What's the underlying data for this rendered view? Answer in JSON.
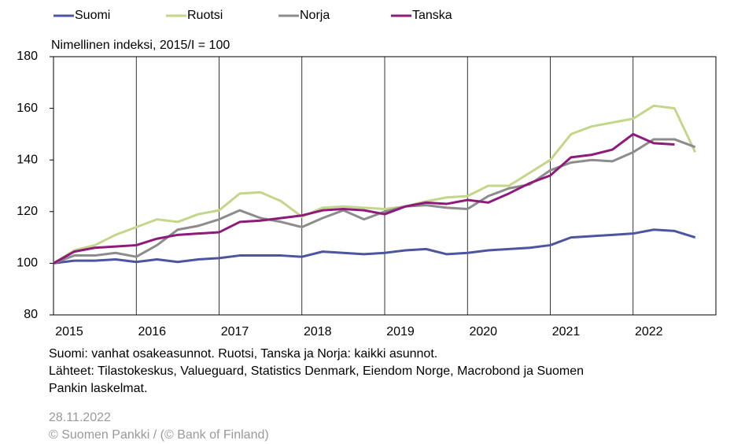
{
  "chart_data": {
    "type": "line",
    "subtitle": "Nimellinen indeksi, 2015/I = 100",
    "x": [
      2015,
      2015.25,
      2015.5,
      2015.75,
      2016,
      2016.25,
      2016.5,
      2016.75,
      2017,
      2017.25,
      2017.5,
      2017.75,
      2018,
      2018.25,
      2018.5,
      2018.75,
      2019,
      2019.25,
      2019.5,
      2019.75,
      2020,
      2020.25,
      2020.5,
      2020.75,
      2021,
      2021.25,
      2021.5,
      2021.75,
      2022,
      2022.25,
      2022.5,
      2022.75
    ],
    "series": [
      {
        "name": "Suomi",
        "color": "#4e55a0",
        "values": [
          100,
          101,
          101,
          101.5,
          100.5,
          101.5,
          100.5,
          101.5,
          102,
          103,
          103,
          103,
          102.5,
          104.5,
          104,
          103.5,
          104,
          105,
          105.5,
          103.5,
          104,
          105,
          105.5,
          106,
          107,
          110,
          110.5,
          111,
          111.5,
          113,
          112.5,
          110
        ]
      },
      {
        "name": "Ruotsi",
        "color": "#c4d68a",
        "values": [
          100,
          105,
          107,
          111,
          114,
          117,
          116,
          119,
          120.5,
          127,
          127.5,
          124,
          118,
          121.5,
          122,
          121.5,
          121,
          122,
          124,
          125.5,
          126,
          130,
          130,
          135,
          140,
          150,
          153,
          154.5,
          156,
          161,
          160,
          143
        ]
      },
      {
        "name": "Norja",
        "color": "#8c8c8c",
        "values": [
          100,
          103,
          103,
          104,
          102.5,
          107,
          113,
          114.5,
          117,
          120.5,
          117.5,
          116,
          114,
          117.5,
          120.5,
          117,
          120,
          122,
          122.5,
          121.5,
          121,
          126,
          129,
          130.5,
          136,
          139,
          140,
          139.5,
          143,
          148,
          148,
          145
        ]
      },
      {
        "name": "Tanska",
        "color": "#8e1a7a",
        "values": [
          100,
          104.5,
          106,
          106.5,
          107,
          109.5,
          111,
          111.5,
          112,
          116,
          116.5,
          117.5,
          118.5,
          120.5,
          121,
          120.5,
          119,
          122,
          123.5,
          123,
          124.5,
          123.5,
          127,
          131,
          134,
          141,
          142,
          144,
          150,
          146.5,
          146,
          null
        ]
      }
    ],
    "xlim": [
      2015,
      2023
    ],
    "xticks": [
      2015,
      2016,
      2017,
      2018,
      2019,
      2020,
      2021,
      2022
    ],
    "ylim": [
      80,
      180
    ],
    "yticks": [
      80,
      100,
      120,
      140,
      160,
      180
    ],
    "grid": "x",
    "notes": [
      "Suomi: vanhat osakeasunnot. Ruotsi, Tanska ja Norja: kaikki asunnot.",
      "Lähteet: Tilastokeskus, Valueguard, Statistics Denmark, Eiendom Norge, Macrobond ja Suomen",
      "Pankin laskelmat."
    ],
    "date": "28.11.2022",
    "copyright": "© Suomen Pankki / (© Bank of Finland)"
  }
}
